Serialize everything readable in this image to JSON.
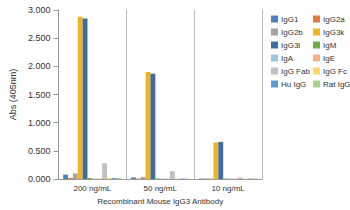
{
  "chart_data": {
    "type": "bar",
    "x_label": "Recombinant Mouse IgG3 Antibody",
    "y_label": "Abs (405nm)",
    "categories": [
      "200 ng/mL",
      "50 ng/mL",
      "10 ng/mL"
    ],
    "series": [
      {
        "name": "IgG1",
        "color": "#4f81bd",
        "values": [
          0.08,
          0.03,
          0.01
        ]
      },
      {
        "name": "IgG2a",
        "color": "#e07b39",
        "values": [
          0.02,
          0.01,
          0.01
        ]
      },
      {
        "name": "IgG2b",
        "color": "#a5a5a5",
        "values": [
          0.1,
          0.04,
          0.01
        ]
      },
      {
        "name": "IgG3k",
        "color": "#f0b323",
        "values": [
          2.88,
          1.9,
          0.65
        ]
      },
      {
        "name": "IgG3l",
        "color": "#3f6e9e",
        "values": [
          2.85,
          1.87,
          0.66
        ]
      },
      {
        "name": "IgM",
        "color": "#70ad47",
        "values": [
          0.02,
          0.01,
          0.01
        ]
      },
      {
        "name": "IgA",
        "color": "#9dc3e6",
        "values": [
          0.01,
          0.01,
          0.01
        ]
      },
      {
        "name": "IgE",
        "color": "#f4b183",
        "values": [
          0.01,
          0.01,
          0.01
        ]
      },
      {
        "name": "IgG Fab",
        "color": "#c0c0c0",
        "values": [
          0.28,
          0.14,
          0.03
        ]
      },
      {
        "name": "IgG Fc",
        "color": "#ffd966",
        "values": [
          0.02,
          0.01,
          0.01
        ]
      },
      {
        "name": "Hu IgG",
        "color": "#5b9bd5",
        "values": [
          0.02,
          0.01,
          0.01
        ]
      },
      {
        "name": "Rat IgG",
        "color": "#a9d18e",
        "values": [
          0.02,
          0.01,
          0.01
        ]
      }
    ],
    "ylim": [
      0,
      3
    ],
    "yticks": [
      {
        "value": 0,
        "label": "0.000"
      },
      {
        "value": 0.5,
        "label": "0.500"
      },
      {
        "value": 1,
        "label": "1.000"
      },
      {
        "value": 1.5,
        "label": "1.500"
      },
      {
        "value": 2,
        "label": "2.000"
      },
      {
        "value": 2.5,
        "label": "2.500"
      },
      {
        "value": 3,
        "label": "3.000"
      }
    ],
    "grid": false,
    "legend": "right"
  }
}
